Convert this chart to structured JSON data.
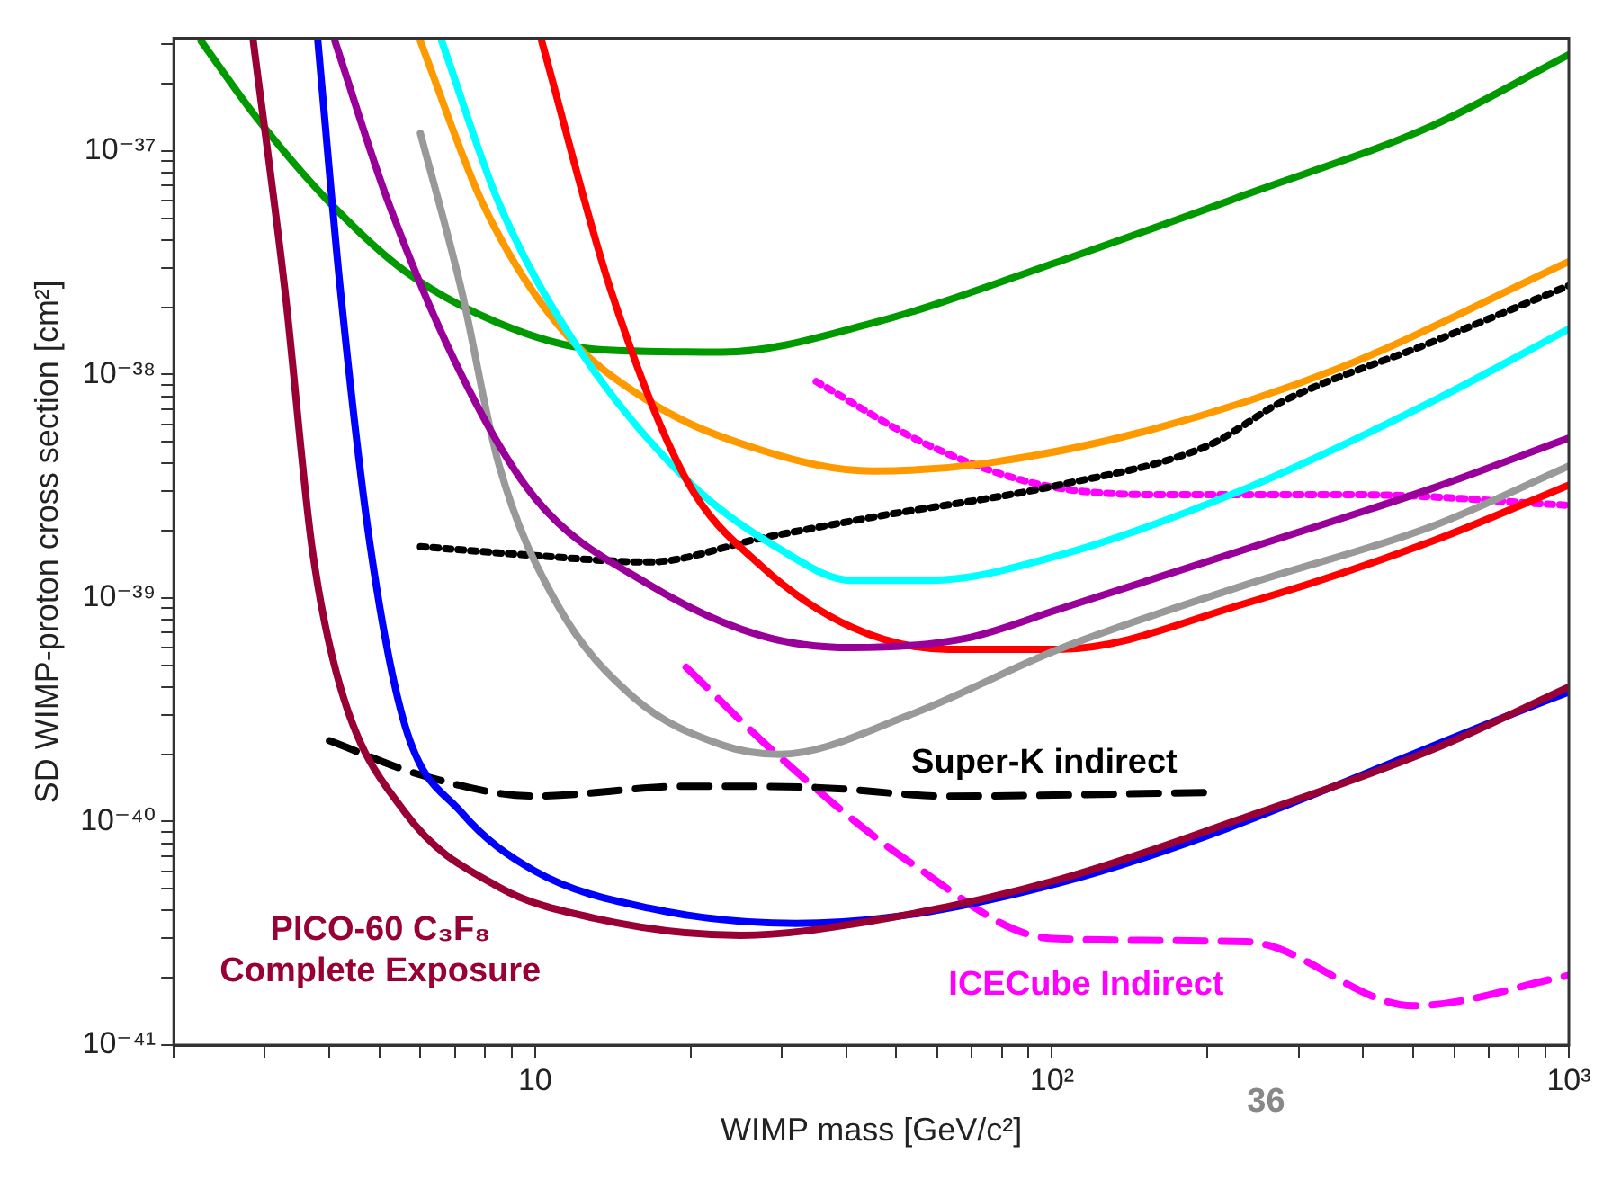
{
  "chart_data": {
    "type": "line",
    "xlabel": "WIMP mass [GeV/c²]",
    "ylabel": "SD WIMP-proton cross section [cm²]",
    "log": "xy",
    "grid": false,
    "legend": false,
    "xlim": [
      2,
      1000
    ],
    "ylim": [
      1e-41,
      3.2e-37
    ],
    "xticks": [
      {
        "value": 2,
        "label": null
      },
      {
        "value": 3,
        "label": null
      },
      {
        "value": 4,
        "label": null
      },
      {
        "value": 5,
        "label": null
      },
      {
        "value": 6,
        "label": null
      },
      {
        "value": 7,
        "label": null
      },
      {
        "value": 8,
        "label": null
      },
      {
        "value": 9,
        "label": null
      },
      {
        "value": 10,
        "label": "10"
      },
      {
        "value": 20,
        "label": null
      },
      {
        "value": 30,
        "label": null
      },
      {
        "value": 40,
        "label": null
      },
      {
        "value": 50,
        "label": null
      },
      {
        "value": 60,
        "label": null
      },
      {
        "value": 70,
        "label": null
      },
      {
        "value": 80,
        "label": null
      },
      {
        "value": 90,
        "label": null
      },
      {
        "value": 100,
        "label": "10²"
      },
      {
        "value": 200,
        "label": null
      },
      {
        "value": 300,
        "label": null
      },
      {
        "value": 400,
        "label": null
      },
      {
        "value": 500,
        "label": null
      },
      {
        "value": 600,
        "label": null
      },
      {
        "value": 700,
        "label": null
      },
      {
        "value": 800,
        "label": null
      },
      {
        "value": 900,
        "label": null
      },
      {
        "value": 1000,
        "label": "10³"
      }
    ],
    "yticks": [
      {
        "value": 1e-41,
        "label": "10⁻⁴¹"
      },
      {
        "value": 2e-41,
        "label": null
      },
      {
        "value": 3e-41,
        "label": null
      },
      {
        "value": 4e-41,
        "label": null
      },
      {
        "value": 5e-41,
        "label": null
      },
      {
        "value": 6e-41,
        "label": null
      },
      {
        "value": 7e-41,
        "label": null
      },
      {
        "value": 8e-41,
        "label": null
      },
      {
        "value": 9e-41,
        "label": null
      },
      {
        "value": 1e-40,
        "label": "10⁻⁴⁰"
      },
      {
        "value": 2e-40,
        "label": null
      },
      {
        "value": 3e-40,
        "label": null
      },
      {
        "value": 4e-40,
        "label": null
      },
      {
        "value": 5e-40,
        "label": null
      },
      {
        "value": 6e-40,
        "label": null
      },
      {
        "value": 7e-40,
        "label": null
      },
      {
        "value": 8e-40,
        "label": null
      },
      {
        "value": 9e-40,
        "label": null
      },
      {
        "value": 1e-39,
        "label": "10⁻³⁹"
      },
      {
        "value": 2e-39,
        "label": null
      },
      {
        "value": 3e-39,
        "label": null
      },
      {
        "value": 4e-39,
        "label": null
      },
      {
        "value": 5e-39,
        "label": null
      },
      {
        "value": 6e-39,
        "label": null
      },
      {
        "value": 7e-39,
        "label": null
      },
      {
        "value": 8e-39,
        "label": null
      },
      {
        "value": 9e-39,
        "label": null
      },
      {
        "value": 1e-38,
        "label": "10⁻³⁸"
      },
      {
        "value": 2e-38,
        "label": null
      },
      {
        "value": 3e-38,
        "label": null
      },
      {
        "value": 4e-38,
        "label": null
      },
      {
        "value": 5e-38,
        "label": null
      },
      {
        "value": 6e-38,
        "label": null
      },
      {
        "value": 7e-38,
        "label": null
      },
      {
        "value": 8e-38,
        "label": null
      },
      {
        "value": 9e-38,
        "label": null
      },
      {
        "value": 1e-37,
        "label": "10⁻³⁷"
      },
      {
        "value": 2e-37,
        "label": null
      },
      {
        "value": 3e-37,
        "label": null
      }
    ],
    "series": [
      {
        "color": "#990033",
        "line_style": "solid",
        "x": [
          2.85,
          3.28,
          3.7,
          4.2,
          5.6,
          8.5,
          13,
          25,
          45,
          103,
          238,
          545,
          1000
        ],
        "values": [
          3.1e-37,
          2.4e-38,
          1.7e-39,
          4e-40,
          1.1e-40,
          5.1e-41,
          3.7e-41,
          3.1e-41,
          3.6e-41,
          5.5e-41,
          1.05e-40,
          2.1e-40,
          4e-40
        ]
      },
      {
        "color": "#0000ff",
        "line_style": "solid",
        "x": [
          3.8,
          4.2,
          4.8,
          5.6,
          7.2,
          10,
          16.6,
          32,
          103,
          1000
        ],
        "values": [
          3.1e-37,
          2.4e-38,
          1.7e-39,
          2.7e-40,
          1.1e-40,
          6e-41,
          4.1e-41,
          3.5e-41,
          5.3e-41,
          3.8e-40
        ]
      },
      {
        "color": "#990099",
        "line_style": "solid",
        "x": [
          4.1,
          5.2,
          7.2,
          10,
          16.6,
          27.3,
          41,
          68,
          103,
          238,
          545,
          1000
        ],
        "values": [
          3.1e-37,
          5.9e-38,
          1e-38,
          2.8e-39,
          1.15e-39,
          6.8e-40,
          6e-40,
          6.6e-40,
          8.9e-40,
          1.66e-39,
          3.1e-39,
          5.2e-39
        ]
      },
      {
        "color": "#999999",
        "line_style": "solid",
        "x": [
          6,
          7.2,
          8.5,
          11,
          15.5,
          23,
          29.7,
          53,
          103,
          238,
          545,
          1000
        ],
        "values": [
          1.2e-37,
          2.4e-38,
          4e-39,
          9.5e-40,
          3.6e-40,
          2.2e-40,
          2e-40,
          3e-40,
          5.9e-40,
          1.15e-39,
          2.1e-39,
          3.9e-39
        ]
      },
      {
        "color": "#ff0000",
        "line_style": "solid",
        "x": [
          10.3,
          14,
          19.6,
          27.3,
          41,
          63,
          103,
          238,
          545,
          1000
        ],
        "values": [
          3.1e-37,
          2.4e-38,
          3.4e-39,
          1.4e-39,
          7.4e-40,
          5.9e-40,
          5.9e-40,
          9.5e-40,
          1.8e-39,
          3.2e-39
        ]
      },
      {
        "color": "#00ffff",
        "line_style": "solid",
        "x": [
          6.6,
          8.5,
          11.9,
          19.6,
          29.7,
          41,
          58,
          103,
          238,
          545,
          1000
        ],
        "values": [
          3.1e-37,
          5.9e-38,
          1.4e-38,
          3.4e-39,
          1.66e-39,
          1.2e-39,
          1.2e-39,
          1.55e-39,
          3.1e-39,
          7.6e-39,
          1.6e-38
        ]
      },
      {
        "color": "#ff9900",
        "line_style": "solid",
        "x": [
          6,
          7.9,
          11,
          16.6,
          27.3,
          45,
          74,
          157,
          360,
          1000
        ],
        "values": [
          3.1e-37,
          5.9e-38,
          1.7e-38,
          7.6e-39,
          4.6e-39,
          3.7e-39,
          4e-39,
          5.7e-39,
          1.07e-38,
          3.2e-38
        ]
      },
      {
        "color": "#009900",
        "line_style": "solid",
        "x": [
          2.26,
          2.9,
          4,
          5.6,
          8.5,
          13,
          23,
          45,
          103,
          238,
          545,
          1000
        ],
        "values": [
          3.1e-37,
          1.4e-37,
          5.9e-38,
          2.9e-38,
          1.7e-38,
          1.3e-38,
          1.26e-38,
          1.7e-38,
          3.2e-38,
          6.4e-38,
          1.3e-37,
          2.7e-37
        ]
      },
      {
        "color": "#000000",
        "line_style": "dotted",
        "x": [
          6,
          10,
          16.6,
          27.3,
          45,
          103,
          200,
          280,
          545,
          1000
        ],
        "values": [
          1.7e-39,
          1.55e-39,
          1.45e-39,
          1.85e-39,
          2.3e-39,
          3.2e-39,
          4.8e-39,
          7.6e-39,
          1.4e-38,
          2.5e-38
        ]
      },
      {
        "color": "#ff00ff",
        "line_style": "dotted",
        "x": [
          35,
          58,
          96,
          170,
          390,
          1000
        ],
        "values": [
          9.3e-39,
          4.8e-39,
          3.2e-39,
          2.9e-39,
          2.9e-39,
          2.6e-39
        ]
      },
      {
        "color": "#000000",
        "line_style": "dashed",
        "x": [
          4,
          6.1,
          10,
          19.6,
          35,
          63,
          200
        ],
        "values": [
          2.3e-40,
          1.6e-40,
          1.3e-40,
          1.44e-40,
          1.42e-40,
          1.3e-40,
          1.35e-40
        ]
      },
      {
        "color": "#ff00ff",
        "line_style": "dashed",
        "x": [
          19.6,
          29.7,
          53,
          100,
          238,
          500,
          1000
        ],
        "values": [
          4.9e-40,
          1.95e-40,
          6.6e-41,
          3e-41,
          2.9e-41,
          1.5e-41,
          2.05e-41
        ]
      }
    ],
    "annotations": [
      "PICO-60 C₃F₈\nComplete Exposure",
      "Super-K indirect",
      "ICECube Indirect",
      "36"
    ]
  }
}
